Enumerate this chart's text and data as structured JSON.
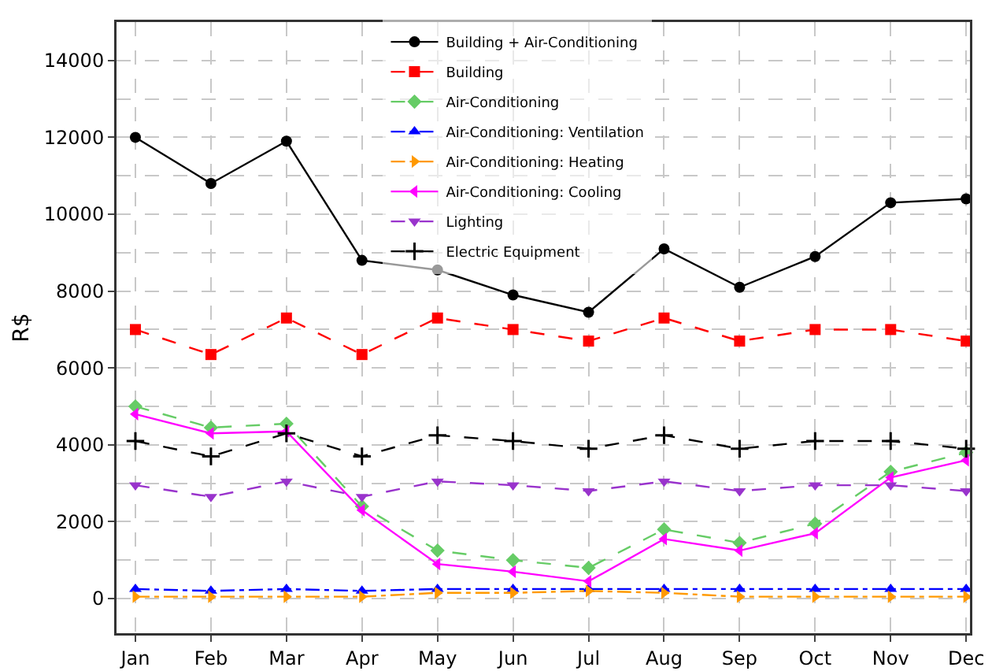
{
  "chart_data": {
    "type": "line",
    "ylabel": "R$",
    "categories": [
      "Jan",
      "Feb",
      "Mar",
      "Apr",
      "May",
      "Jun",
      "Jul",
      "Aug",
      "Sep",
      "Oct",
      "Nov",
      "Dec"
    ],
    "ylim": [
      -900,
      15000
    ],
    "yticks": [
      0,
      2000,
      4000,
      6000,
      8000,
      10000,
      12000,
      14000
    ],
    "grid": true,
    "legend": "top",
    "series": [
      {
        "name": "Building + Air-Conditioning",
        "color": "#000000",
        "marker": "circle",
        "line_style": "solid",
        "values": [
          12000,
          10800,
          11900,
          8800,
          8550,
          7900,
          7450,
          9100,
          8100,
          8900,
          10300,
          10400
        ]
      },
      {
        "name": "Building",
        "color": "#ff0000",
        "marker": "square",
        "line_style": "dashed",
        "values": [
          7000,
          6350,
          7300,
          6350,
          7300,
          7000,
          6700,
          7300,
          6700,
          7000,
          7000,
          6700
        ]
      },
      {
        "name": "Air-Conditioning",
        "color": "#66cc66",
        "marker": "diamond",
        "line_style": "dashed",
        "values": [
          5000,
          4450,
          4550,
          2400,
          1250,
          1000,
          800,
          1800,
          1450,
          1950,
          3300,
          3800
        ]
      },
      {
        "name": "Air-Conditioning: Ventilation",
        "color": "#0000ff",
        "marker": "triangle",
        "line_style": "dashdot",
        "values": [
          250,
          200,
          250,
          200,
          250,
          250,
          250,
          250,
          250,
          250,
          250,
          250
        ]
      },
      {
        "name": "Air-Conditioning: Heating",
        "color": "#ff9900",
        "marker": "triangle-right",
        "line_style": "dashdot",
        "values": [
          50,
          50,
          50,
          50,
          150,
          150,
          200,
          150,
          50,
          50,
          50,
          50
        ]
      },
      {
        "name": "Air-Conditioning: Cooling",
        "color": "#ff00ff",
        "marker": "triangle-left",
        "line_style": "solid",
        "values": [
          4800,
          4300,
          4350,
          2300,
          900,
          700,
          450,
          1550,
          1250,
          1700,
          3150,
          3600
        ]
      },
      {
        "name": "Lighting",
        "color": "#9933cc",
        "marker": "triangle-down",
        "line_style": "dashed",
        "values": [
          2950,
          2650,
          3050,
          2650,
          3050,
          2950,
          2800,
          3050,
          2800,
          2950,
          2950,
          2800
        ]
      },
      {
        "name": "Electric Equipment",
        "color": "#000000",
        "marker": "cross",
        "line_style": "dashed",
        "values": [
          4100,
          3700,
          4300,
          3700,
          4250,
          4100,
          3900,
          4250,
          3900,
          4100,
          4100,
          3900
        ]
      }
    ]
  }
}
